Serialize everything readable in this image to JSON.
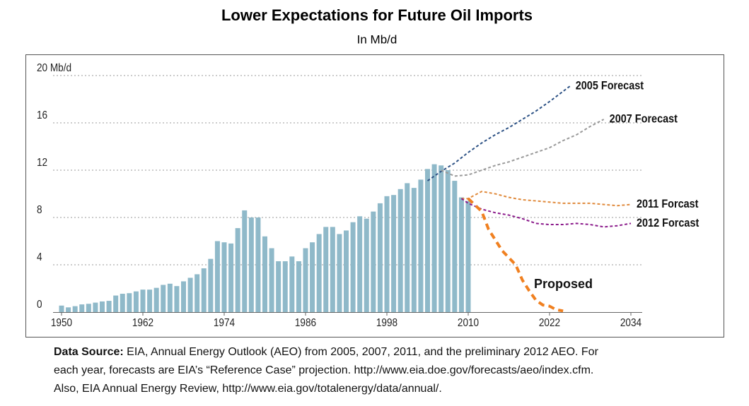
{
  "chart_data": {
    "type": "bar",
    "title": "Lower Expectations for Future Oil Imports",
    "subtitle": "In Mb/d",
    "x": [
      1950,
      1951,
      1952,
      1953,
      1954,
      1955,
      1956,
      1957,
      1958,
      1959,
      1960,
      1961,
      1962,
      1963,
      1964,
      1965,
      1966,
      1967,
      1968,
      1969,
      1970,
      1971,
      1972,
      1973,
      1974,
      1975,
      1976,
      1977,
      1978,
      1979,
      1980,
      1981,
      1982,
      1983,
      1984,
      1985,
      1986,
      1987,
      1988,
      1989,
      1990,
      1991,
      1992,
      1993,
      1994,
      1995,
      1996,
      1997,
      1998,
      1999,
      2000,
      2001,
      2002,
      2003,
      2004,
      2005,
      2006,
      2007,
      2008,
      2009,
      2010
    ],
    "values": [
      0.55,
      0.4,
      0.5,
      0.65,
      0.7,
      0.8,
      0.9,
      0.95,
      1.4,
      1.55,
      1.6,
      1.75,
      1.9,
      1.9,
      2.05,
      2.3,
      2.4,
      2.2,
      2.6,
      2.9,
      3.2,
      3.7,
      4.5,
      6.0,
      5.9,
      5.8,
      7.1,
      8.6,
      8.0,
      8.0,
      6.4,
      5.4,
      4.3,
      4.3,
      4.7,
      4.3,
      5.4,
      5.9,
      6.6,
      7.2,
      7.2,
      6.6,
      6.9,
      7.6,
      8.1,
      7.9,
      8.5,
      9.2,
      9.8,
      9.9,
      10.4,
      10.9,
      10.5,
      11.2,
      12.1,
      12.5,
      12.4,
      12.0,
      11.1,
      9.7,
      9.4
    ],
    "color": "#8fb9c9",
    "series": [
      {
        "type": "line",
        "name": "2005 Forecast",
        "color": "#2d5285",
        "x": [
          2004,
          2006,
          2008,
          2010,
          2012,
          2014,
          2016,
          2018,
          2020,
          2022,
          2025
        ],
        "values": [
          11.1,
          11.9,
          12.6,
          13.5,
          14.3,
          15.0,
          15.6,
          16.3,
          17.0,
          17.8,
          19.1
        ]
      },
      {
        "type": "line",
        "name": "2007 Forecast",
        "color": "#9a9a9a",
        "x": [
          2006,
          2008,
          2010,
          2012,
          2014,
          2016,
          2018,
          2020,
          2022,
          2024,
          2026,
          2028,
          2030
        ],
        "values": [
          12.0,
          11.5,
          11.6,
          12.0,
          12.4,
          12.7,
          13.1,
          13.5,
          13.9,
          14.5,
          15.0,
          15.7,
          16.3
        ]
      },
      {
        "type": "line",
        "name": "2011 Forcast",
        "color": "#e08a3c",
        "x": [
          2009,
          2010,
          2012,
          2014,
          2016,
          2018,
          2020,
          2022,
          2024,
          2026,
          2028,
          2030,
          2032,
          2034
        ],
        "values": [
          9.6,
          9.6,
          10.2,
          10.0,
          9.7,
          9.5,
          9.4,
          9.3,
          9.2,
          9.2,
          9.2,
          9.1,
          9.0,
          9.1
        ]
      },
      {
        "type": "line",
        "name": "2012 Forcast",
        "color": "#8b1a8b",
        "x": [
          2009,
          2010,
          2012,
          2014,
          2016,
          2018,
          2020,
          2022,
          2024,
          2026,
          2028,
          2030,
          2032,
          2034
        ],
        "values": [
          9.6,
          9.2,
          8.7,
          8.4,
          8.2,
          7.9,
          7.5,
          7.4,
          7.4,
          7.5,
          7.4,
          7.2,
          7.3,
          7.5
        ]
      },
      {
        "type": "line",
        "name": "Proposed",
        "color": "#f08020",
        "x": [
          2010,
          2012,
          2013,
          2015,
          2016,
          2017,
          2018,
          2019,
          2020,
          2021,
          2022,
          2023,
          2024
        ],
        "values": [
          9.6,
          8.5,
          7.0,
          5.2,
          4.6,
          4.0,
          2.7,
          1.8,
          1.0,
          0.6,
          0.5,
          0.2,
          0.1
        ]
      }
    ],
    "xlim": [
      1950,
      2034
    ],
    "xticks": [
      1950,
      1962,
      1974,
      1986,
      1998,
      2010,
      2022,
      2034
    ],
    "ylim": [
      0,
      20
    ],
    "yticks": [
      0,
      4,
      8,
      12,
      16,
      {
        "value": 20,
        "label": "20 Mb/d"
      }
    ],
    "grid": true
  },
  "footer": {
    "label": "Data Source:",
    "lines": [
      "EIA, Annual Energy Outlook (AEO) from 2005, 2007, 2011, and the preliminary 2012 AEO. For",
      "each year, forecasts are EIA’s “Reference Case” projection. http://www.eia.doe.gov/forecasts/aeo/index.cfm.",
      "Also, EIA Annual Energy Review, http://www.eia.gov/totalenergy/data/annual/."
    ]
  }
}
